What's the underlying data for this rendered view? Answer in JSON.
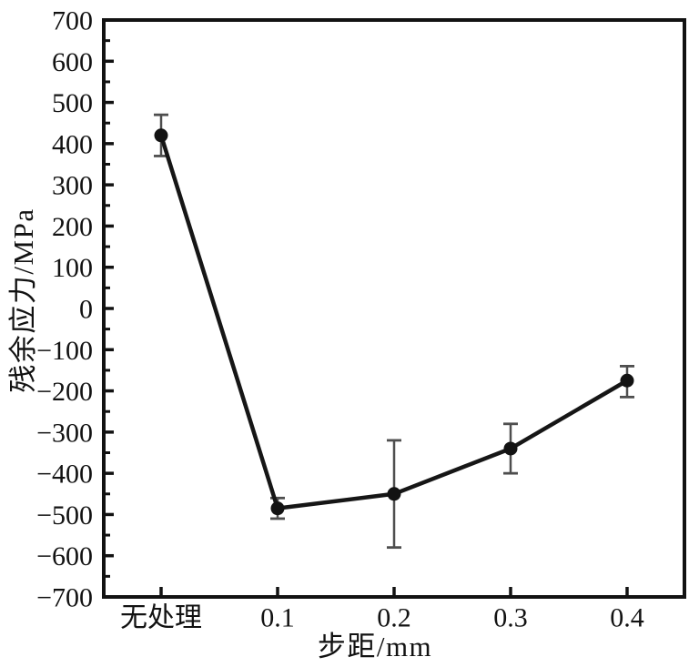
{
  "figure": {
    "description": "Line chart with error bars: residual stress versus step distance"
  },
  "chart_data": {
    "type": "line",
    "title": "",
    "xlabel": "步距/mm",
    "ylabel": "残余应力/MPa",
    "categories": [
      "无处理",
      "0.1",
      "0.2",
      "0.3",
      "0.4"
    ],
    "series": [
      {
        "name": "残余应力",
        "values": [
          420,
          -485,
          -450,
          -340,
          -175
        ],
        "error_plus": [
          50,
          25,
          130,
          60,
          35
        ],
        "error_minus": [
          50,
          25,
          130,
          60,
          40
        ]
      }
    ],
    "ylim": [
      -700,
      700
    ],
    "ytick_major_step": 100,
    "ytick_minor_step": 50,
    "yticks": [
      700,
      600,
      500,
      400,
      300,
      200,
      100,
      0,
      -100,
      -200,
      -300,
      -400,
      -500,
      -600,
      -700
    ],
    "grid": false,
    "legend": "none",
    "marker": "filled-circle",
    "colors": {
      "line": "#161616",
      "marker": "#121212",
      "error_bar": "#4e4e4e",
      "axis": "#121212",
      "text": "#121212",
      "background": "#ffffff"
    }
  }
}
